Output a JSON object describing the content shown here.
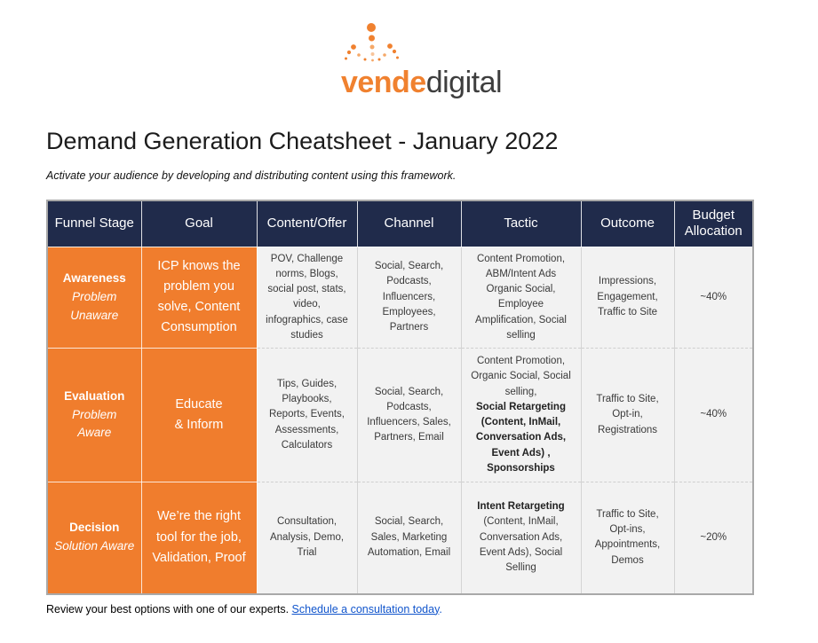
{
  "logo": {
    "brand_bold": "vende",
    "brand_light": "digital"
  },
  "title": "Demand Generation Cheatsheet - January 2022",
  "subtitle": "Activate your audience by developing and distributing content using this framework.",
  "colors": {
    "header_navy": "#202b4b",
    "stage_orange": "#f07d2d",
    "cell_gray": "#f2f2f2",
    "logo_orange": "#f0812f",
    "link_blue": "#1155cc"
  },
  "table": {
    "columns": [
      "Funnel Stage",
      "Goal",
      "Content/Offer",
      "Channel",
      "Tactic",
      "Outcome",
      "Budget Allocation"
    ],
    "rows": [
      {
        "stage": "Awareness",
        "stage_sub": "Problem Unaware",
        "goal": "ICP knows the problem you solve, Content Consumption",
        "content_offer": "POV, Challenge norms, Blogs, social post, stats, video, infographics, case studies",
        "channel": "Social, Search, Podcasts, Influencers, Employees, Partners",
        "tactic": [
          {
            "text": "Content Promotion, ABM/Intent Ads Organic Social, Employee Amplification, Social selling",
            "bold": false
          }
        ],
        "outcome": "Impressions, Engagement, Traffic to Site",
        "budget": "~40%"
      },
      {
        "stage": "Evaluation",
        "stage_sub": "Problem Aware",
        "goal": "Educate\n& Inform",
        "content_offer": "Tips, Guides, Playbooks, Reports, Events, Assessments, Calculators",
        "channel": "Social, Search, Podcasts, Influencers, Sales, Partners, Email",
        "tactic": [
          {
            "text": "Content Promotion, Organic Social, Social selling,\n",
            "bold": false
          },
          {
            "text": "Social Retargeting (Content, InMail, Conversation Ads, Event Ads) , Sponsorships",
            "bold": true
          }
        ],
        "outcome": "Traffic to Site, Opt-in, Registrations",
        "budget": "~40%"
      },
      {
        "stage": "Decision",
        "stage_sub": "Solution Aware",
        "goal": "We’re the right tool for the job, Validation, Proof",
        "content_offer": "Consultation, Analysis, Demo, Trial",
        "channel": "Social, Search,  Sales, Marketing Automation, Email",
        "tactic": [
          {
            "text": "Intent Retargeting",
            "bold": true
          },
          {
            "text": "\n(Content, InMail, Conversation Ads, Event Ads), Social Selling",
            "bold": false
          }
        ],
        "outcome": "Traffic to Site, Opt-ins, Appointments, Demos",
        "budget": "~20%"
      }
    ]
  },
  "footer": {
    "text": "Review your best options with one of our experts. ",
    "link_label": "Schedule a consultation today",
    "after_link": "."
  }
}
